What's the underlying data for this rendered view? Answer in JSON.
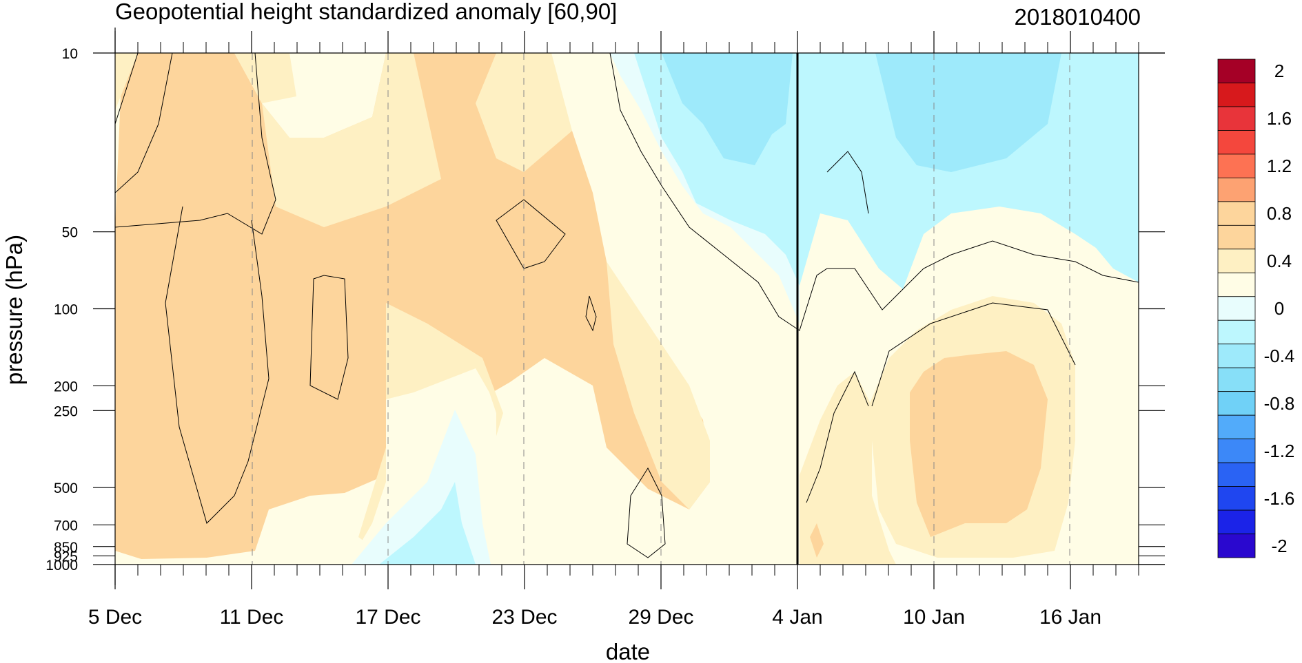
{
  "chart_data": {
    "type": "heatmap",
    "title": "Geopotential height standardized anomaly [60,90]",
    "run_label": "2018010400",
    "xlabel": "date",
    "ylabel": "pressure (hPa)",
    "x_start": "2017-12-05",
    "x_end": "2018-01-19",
    "x_ticklabels": [
      "5 Dec",
      "11 Dec",
      "17 Dec",
      "23 Dec",
      "29 Dec",
      "4 Jan",
      "10 Jan",
      "16 Jan"
    ],
    "x_tick_dates": [
      "2017-12-05",
      "2017-12-11",
      "2017-12-17",
      "2017-12-23",
      "2017-12-29",
      "2018-01-04",
      "2018-01-10",
      "2018-01-16"
    ],
    "analysis_date": "2018-01-04",
    "y_scale": "log",
    "ylim": [
      1000,
      10
    ],
    "y_ticklabels": [
      "10",
      "50",
      "100",
      "200",
      "250",
      "500",
      "700",
      "850",
      "925",
      "1000"
    ],
    "y_ticks": [
      10,
      50,
      100,
      200,
      250,
      500,
      700,
      850,
      925,
      1000
    ],
    "colorbar": {
      "labels": [
        "2",
        "1.6",
        "1.2",
        "0.8",
        "0.4",
        "0",
        "-0.4",
        "-0.8",
        "-1.2",
        "-1.6",
        "-2"
      ],
      "levels": [
        2,
        1.8,
        1.6,
        1.4,
        1.2,
        1.0,
        0.8,
        0.6,
        0.4,
        0.2,
        0,
        -0.2,
        -0.4,
        -0.6,
        -0.8,
        -1.0,
        -1.2,
        -1.4,
        -1.6,
        -1.8,
        -2
      ],
      "colors": [
        "#a50026",
        "#d7191c",
        "#e8343a",
        "#f4473d",
        "#fd7253",
        "#fda272",
        "#fdd59c",
        "#fdd59c",
        "#fef0c3",
        "#fffde6",
        "#e8fdfd",
        "#bdf7fe",
        "#9eeafb",
        "#87dff8",
        "#70d1f7",
        "#52abfa",
        "#3c88f8",
        "#2a63f4",
        "#1f46f0",
        "#1b23e8",
        "#2a08cf"
      ]
    },
    "regions": [
      {
        "date_from": "2017-12-05",
        "date_to": "2017-12-28",
        "p_from": 10,
        "p_to": 1000,
        "value": 0.6,
        "color": "#fdd59c"
      },
      {
        "date_from": "2017-12-17",
        "date_to": "2017-12-22",
        "p_from": 200,
        "p_to": 1000,
        "value": 0.0,
        "color": "#fffde6"
      },
      {
        "date_from": "2017-12-19",
        "date_to": "2017-12-21",
        "p_from": 500,
        "p_to": 1000,
        "value": -0.3,
        "color": "#bdf7fe"
      },
      {
        "date_from": "2017-12-12",
        "date_to": "2017-12-18",
        "p_from": 10,
        "p_to": 30,
        "value": 0.1,
        "color": "#fffde6"
      },
      {
        "date_from": "2017-12-29",
        "date_to": "2018-01-04",
        "p_from": 10,
        "p_to": 120,
        "value": -0.5,
        "color": "#bdf7fe"
      },
      {
        "date_from": "2017-12-31",
        "date_to": "2018-01-04",
        "p_from": 10,
        "p_to": 25,
        "value": -0.7,
        "color": "#9eeafb"
      },
      {
        "date_from": "2018-01-04",
        "date_to": "2018-01-19",
        "p_from": 10,
        "p_to": 100,
        "value": -0.4,
        "color": "#bdf7fe"
      },
      {
        "date_from": "2018-01-08",
        "date_to": "2018-01-15",
        "p_from": 10,
        "p_to": 40,
        "value": -0.7,
        "color": "#9eeafb"
      },
      {
        "date_from": "2018-01-04",
        "date_to": "2018-01-19",
        "p_from": 100,
        "p_to": 1000,
        "value": 0.2,
        "color": "#fef0c3"
      },
      {
        "date_from": "2018-01-09",
        "date_to": "2018-01-16",
        "p_from": 200,
        "p_to": 800,
        "value": 0.6,
        "color": "#fdd59c"
      }
    ]
  }
}
